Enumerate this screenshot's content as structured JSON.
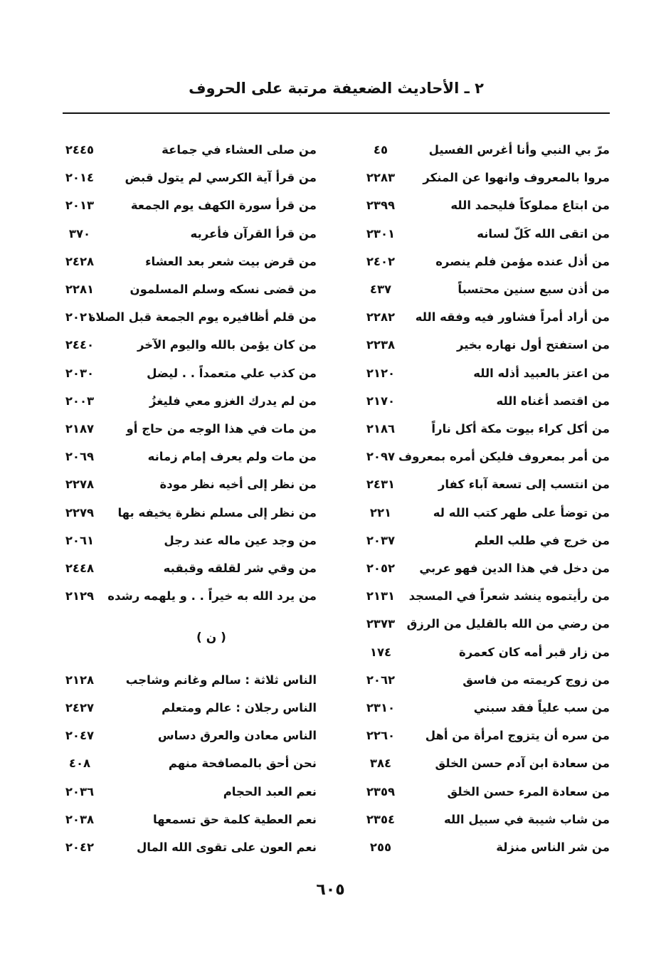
{
  "header": {
    "title": "٢ ـ الأحاديث الضعيفة مرتبة على الحروف"
  },
  "right_column": [
    {
      "text": "مرّ بي النبي وأنا أغرس الفسيل",
      "num": "٤٥"
    },
    {
      "text": "مروا بالمعروف وانهوا عن المنكر",
      "num": "٢٢٨٣"
    },
    {
      "text": "من ابتاع مملوكاً فليحمد الله",
      "num": "٢٣٩٩"
    },
    {
      "text": "من اتقى الله كَلّ لسانه",
      "num": "٢٣٠١"
    },
    {
      "text": "من أذل عنده مؤمن فلم ينصره",
      "num": "٢٤٠٢"
    },
    {
      "text": "من أذن سبع سنين محتسباً",
      "num": "٤٣٧"
    },
    {
      "text": "من أراد أمراً فشاور فيه وفقه الله",
      "num": "٢٢٨٢"
    },
    {
      "text": "من استفتح أول نهاره بخير",
      "num": "٢٢٣٨"
    },
    {
      "text": "من اعتز بالعبيد أذله الله",
      "num": "٢١٢٠"
    },
    {
      "text": "من اقتصد أغناه الله",
      "num": "٢١٧٠"
    },
    {
      "text": "من أكل كراء بيوت مكة أكل ناراً",
      "num": "٢١٨٦"
    },
    {
      "text": "من أمر بمعروف فليكن أمره بمعروف",
      "num": "٢٠٩٧"
    },
    {
      "text": "من انتسب إلى تسعة آباء كفار",
      "num": "٢٤٣١"
    },
    {
      "text": "من توضأ على طهر كتب الله له",
      "num": "٢٢١"
    },
    {
      "text": "من خرج في طلب العلم",
      "num": "٢٠٣٧"
    },
    {
      "text": "من دخل في هذا الدين فهو عربي",
      "num": "٢٠٥٢"
    },
    {
      "text": "من رأيتموه ينشد شعراً في المسجد",
      "num": "٢١٣١"
    },
    {
      "text": "من رضي من الله بالقليل من الرزق",
      "num": "٢٣٧٣"
    },
    {
      "text": "من زار قبر أمه كان كعمرة",
      "num": "١٧٤"
    },
    {
      "text": "من زوج كريمته من فاسق",
      "num": "٢٠٦٢"
    },
    {
      "text": "من سب علياً فقد سبني",
      "num": "٢٣١٠"
    },
    {
      "text": "من سره أن يتزوج امرأة من أهل",
      "num": "٢٢٦٠"
    },
    {
      "text": "من سعادة ابن آدم حسن الخلق",
      "num": "٣٨٤"
    },
    {
      "text": "من سعادة المرء حسن الخلق",
      "num": "٢٣٥٩"
    },
    {
      "text": "من شاب شيبة في سبيل الله",
      "num": "٢٣٥٤"
    },
    {
      "text": "من شر الناس منزلة",
      "num": "٢٥٥"
    }
  ],
  "left_column": [
    {
      "text": "من صلى العشاء في جماعة",
      "num": "٢٤٤٥"
    },
    {
      "text": "من قرأ آية الكرسي لم يتول قبض",
      "num": "٢٠١٤"
    },
    {
      "text": "من قرأ سورة الكهف يوم الجمعة",
      "num": "٢٠١٣"
    },
    {
      "text": "من قرأ القرآن فأعربه",
      "num": "٣٧٠"
    },
    {
      "text": "من قرض بيت شعر بعد العشاء",
      "num": "٢٤٢٨"
    },
    {
      "text": "من قضى نسكه وسلم المسلمون",
      "num": "٢٢٨١"
    },
    {
      "text": "من قلم أظافيره يوم الجمعة قبل الصلاة",
      "num": "٢٠٢١"
    },
    {
      "text": "من كان يؤمن بالله واليوم الآخر",
      "num": "٢٤٤٠"
    },
    {
      "text": "من كذب علي متعمداً . . ليضل",
      "num": "٢٠٣٠"
    },
    {
      "text": "من لم يدرك الغزو معي فليغزُ",
      "num": "٢٠٠٣"
    },
    {
      "text": "من مات في هذا الوجه من حاج أو",
      "num": "٢١٨٧"
    },
    {
      "text": "من مات ولم يعرف إمام زمانه",
      "num": "٢٠٦٩"
    },
    {
      "text": "من نظر إلى أخيه نظر مودة",
      "num": "٢٢٧٨"
    },
    {
      "text": "من نظر إلى مسلم نظرة يخيفه بها",
      "num": "٢٢٧٩"
    },
    {
      "text": "من وجد عين ماله عند رجل",
      "num": "٢٠٦١"
    },
    {
      "text": "من وقي شر لقلقه وقبقبه",
      "num": "٢٤٤٨"
    },
    {
      "text": "من يرد الله به خيراً . . و يلهمه رشده",
      "num": "٢١٢٩"
    }
  ],
  "section_heading": "( ن )",
  "left_column_section": [
    {
      "text": "الناس ثلاثة : سالم وغانم وشاجب",
      "num": "٢١٢٨"
    },
    {
      "text": "الناس رجلان : عالم ومتعلم",
      "num": "٢٤٢٧"
    },
    {
      "text": "الناس معادن والعرق دساس",
      "num": "٢٠٤٧"
    },
    {
      "text": "نحن أحق بالمصافحة منهم",
      "num": "٤٠٨"
    },
    {
      "text": "نعم العبد الحجام",
      "num": "٢٠٣٦"
    },
    {
      "text": "نعم العطية كلمة حق تسمعها",
      "num": "٢٠٣٨"
    },
    {
      "text": "نعم العون على تقوى الله المال",
      "num": "٢٠٤٢"
    }
  ],
  "page_number": "٦٠٥"
}
